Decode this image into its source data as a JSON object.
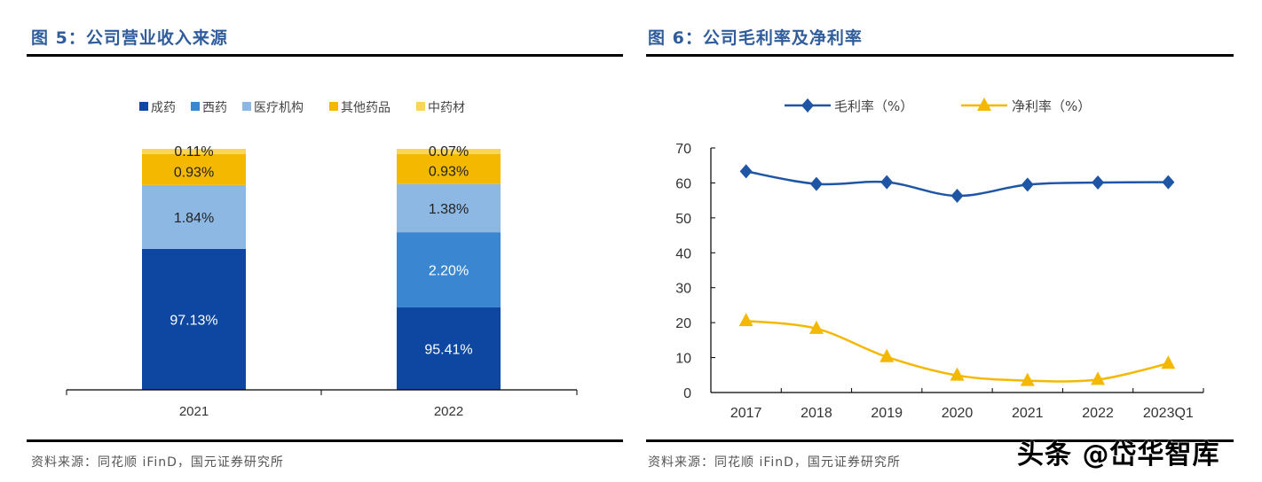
{
  "left": {
    "title": "图 5：公司营业收入来源",
    "source": "资料来源：同花顺 iFinD，国元证券研究所"
  },
  "right": {
    "title": "图 6：公司毛利率及净利率",
    "source": "资料来源：同花顺 iFinD，国元证券研究所"
  },
  "watermark": "头条 @岱华智库",
  "chart_data": [
    {
      "type": "bar",
      "stacked": true,
      "categories": [
        "2021",
        "2022"
      ],
      "series": [
        {
          "name": "成药",
          "color": "#0d47a1",
          "values": [
            97.13,
            95.41
          ],
          "labels": [
            "97.13%",
            "95.41%"
          ]
        },
        {
          "name": "西药",
          "color": "#3a86d0",
          "values": [
            0,
            2.2
          ],
          "labels": [
            "",
            "2.20%"
          ]
        },
        {
          "name": "医疗机构",
          "color": "#8db8e4",
          "values": [
            1.84,
            1.38
          ],
          "labels": [
            "1.84%",
            "1.38%"
          ]
        },
        {
          "name": "其他药品",
          "color": "#f5b800",
          "values": [
            0.93,
            0.93
          ],
          "labels": [
            "0.93%",
            "0.93%"
          ]
        },
        {
          "name": "中药材",
          "color": "#fbd55a",
          "values": [
            0.11,
            0.07
          ],
          "labels": [
            "0.11%",
            "0.07%"
          ]
        }
      ],
      "legend": "top",
      "grid": false
    },
    {
      "type": "line",
      "categories": [
        "2017",
        "2018",
        "2019",
        "2020",
        "2021",
        "2022",
        "2023Q1"
      ],
      "series": [
        {
          "name": "毛利率（%）",
          "color": "#1f55a5",
          "marker": "diamond",
          "values": [
            63.3,
            59.7,
            60.2,
            56.3,
            59.5,
            60.1,
            60.2
          ]
        },
        {
          "name": "净利率（%）",
          "color": "#f5b800",
          "marker": "triangle",
          "values": [
            20.5,
            18.3,
            10.2,
            4.9,
            3.4,
            3.7,
            8.3
          ]
        }
      ],
      "ylim": [
        0,
        70
      ],
      "yticks": [
        "0",
        "10",
        "20",
        "30",
        "40",
        "50",
        "60",
        "70"
      ],
      "legend": "top",
      "grid": false
    }
  ]
}
